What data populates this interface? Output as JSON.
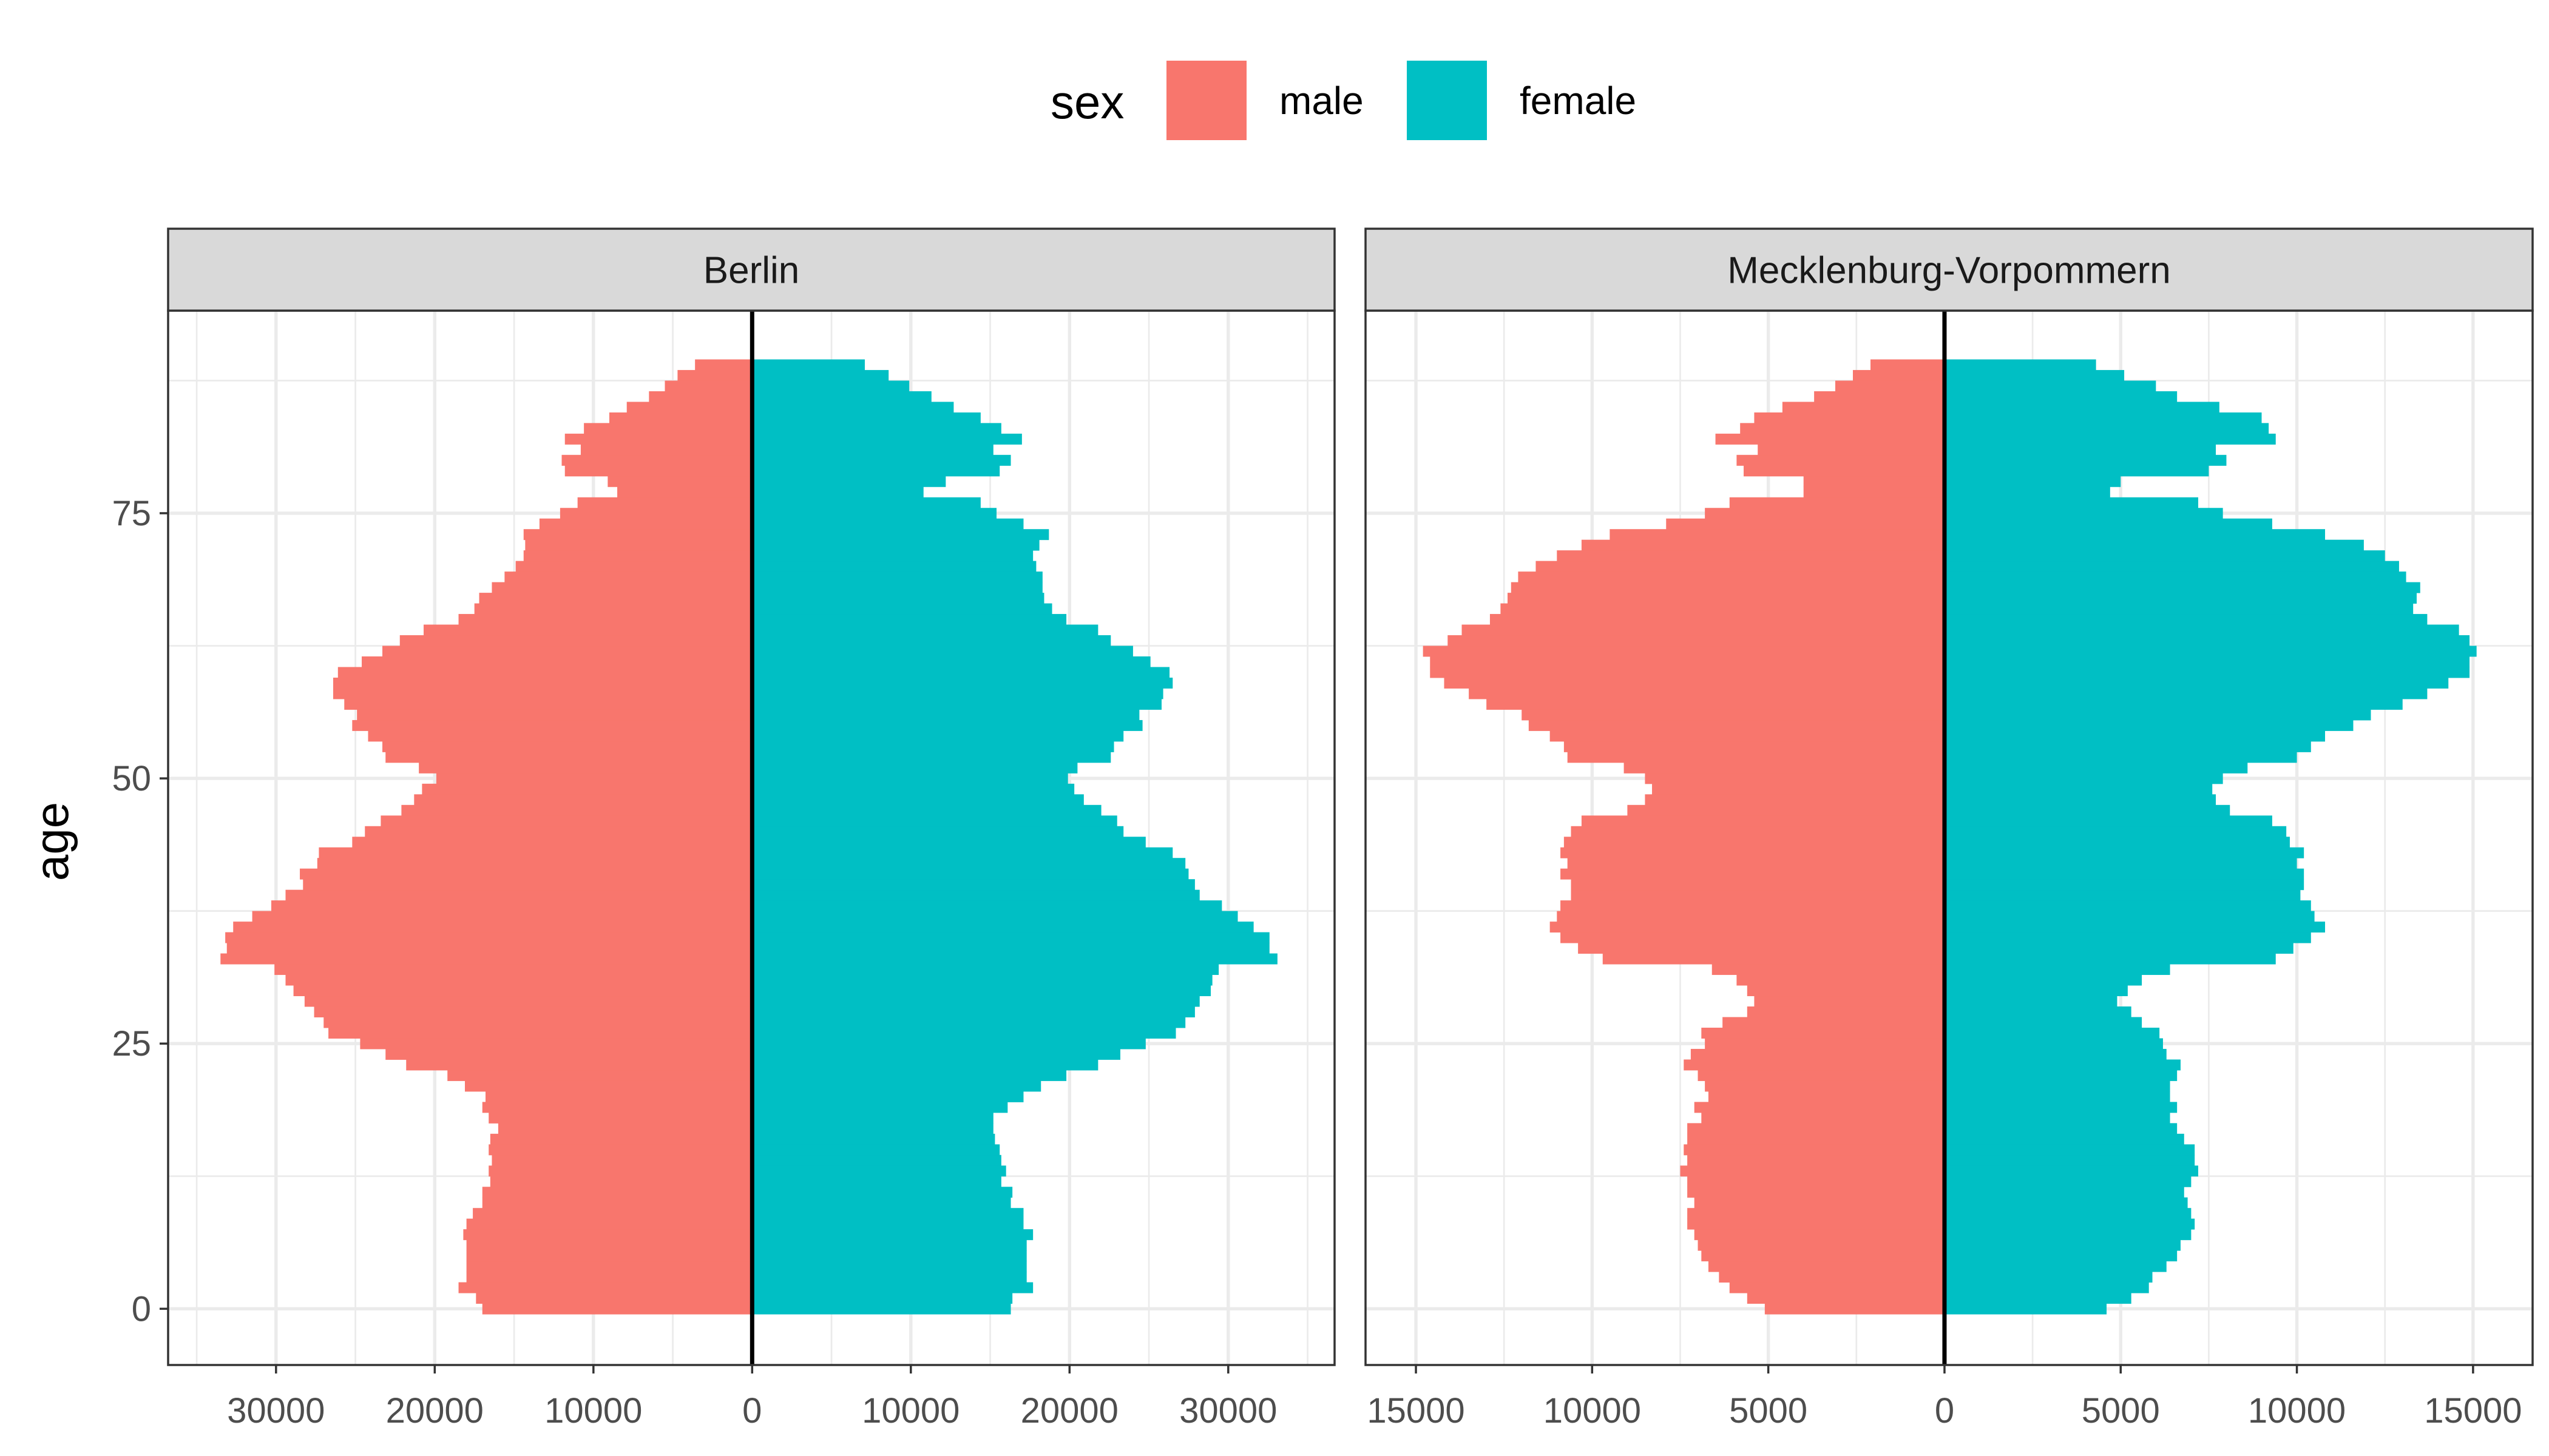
{
  "chart_data": {
    "type": "bar",
    "orientation": "horizontal",
    "subtype": "population-pyramid",
    "xlabel": "",
    "ylabel": "age",
    "legend": {
      "title": "sex",
      "placement": "top",
      "entries": [
        {
          "name": "male",
          "color": "#F8766D"
        },
        {
          "name": "female",
          "color": "#00BFC4"
        }
      ]
    },
    "grid": true,
    "y_ticks": [
      "0",
      "25",
      "50",
      "75"
    ],
    "y_tick_values": [
      0,
      25,
      50,
      75
    ],
    "ylim": [
      -5.3,
      94.1
    ],
    "facets": [
      {
        "name": "Berlin",
        "xlim": [
          -36800,
          36700
        ],
        "x_tick_values": [
          -30000,
          -20000,
          -10000,
          0,
          10000,
          20000,
          30000
        ],
        "x_ticks": [
          "30000",
          "20000",
          "10000",
          "0",
          "10000",
          "20000",
          "30000"
        ],
        "minor_step": 5000,
        "ages_from": 0,
        "male": [
          17000,
          17400,
          18500,
          18000,
          18000,
          18000,
          18000,
          18200,
          18000,
          17600,
          17000,
          17000,
          16500,
          16600,
          16400,
          16600,
          16500,
          16000,
          16600,
          17000,
          16800,
          18100,
          19200,
          21800,
          23100,
          24700,
          26700,
          27000,
          27600,
          28200,
          28900,
          29400,
          30100,
          33500,
          33100,
          33200,
          32700,
          31500,
          30300,
          29400,
          28300,
          28500,
          27400,
          27300,
          25200,
          24400,
          23400,
          22100,
          21300,
          20800,
          19900,
          21000,
          23100,
          23300,
          24200,
          25200,
          24900,
          25700,
          26400,
          26400,
          26100,
          24600,
          23300,
          22200,
          20700,
          18500,
          17500,
          17200,
          16400,
          15600,
          14900,
          14400,
          14300,
          14400,
          13400,
          12100,
          11000,
          8500,
          9100,
          11800,
          12000,
          10800,
          11800,
          10600,
          9000,
          7900,
          6500,
          5500,
          4700,
          3600
        ],
        "female": [
          16300,
          16400,
          17700,
          17300,
          17300,
          17300,
          17300,
          17700,
          17100,
          17100,
          16300,
          16400,
          15700,
          16000,
          15700,
          15600,
          15300,
          15200,
          15200,
          16100,
          17100,
          18200,
          19800,
          21800,
          23200,
          24800,
          26700,
          27300,
          27900,
          28200,
          28900,
          29000,
          29400,
          33100,
          32600,
          32600,
          31600,
          30600,
          29600,
          28200,
          27900,
          27500,
          27300,
          26500,
          24800,
          23400,
          23000,
          22000,
          20900,
          20300,
          19900,
          20500,
          22600,
          22800,
          23400,
          24600,
          24400,
          25800,
          25900,
          26500,
          26300,
          25100,
          24000,
          22600,
          21800,
          19800,
          18900,
          18400,
          18300,
          18300,
          17900,
          17700,
          18100,
          18700,
          17100,
          15400,
          14400,
          10800,
          12200,
          15600,
          16300,
          15200,
          17000,
          15700,
          14400,
          12700,
          11300,
          9900,
          8600,
          7100
        ]
      },
      {
        "name": "Mecklenburg-Vorpommern",
        "xlim": [
          -16430,
          16690
        ],
        "x_tick_values": [
          -15000,
          -10000,
          -5000,
          0,
          5000,
          10000,
          15000
        ],
        "x_ticks": [
          "15000",
          "10000",
          "5000",
          "0",
          "5000",
          "10000",
          "15000"
        ],
        "minor_step": 2500,
        "ages_from": 0,
        "male": [
          5100,
          5600,
          6100,
          6400,
          6700,
          6900,
          7000,
          7100,
          7300,
          7300,
          7100,
          7300,
          7300,
          7500,
          7300,
          7400,
          7300,
          7300,
          6900,
          7100,
          6700,
          6800,
          7000,
          7400,
          7200,
          6800,
          6900,
          6300,
          5600,
          5400,
          5600,
          5900,
          6600,
          9700,
          10400,
          10900,
          11200,
          11000,
          10900,
          10600,
          10600,
          10900,
          10700,
          10900,
          10800,
          10600,
          10300,
          9000,
          8500,
          8300,
          8500,
          9100,
          10700,
          10800,
          11200,
          11800,
          12000,
          13000,
          13500,
          14200,
          14600,
          14600,
          14800,
          14100,
          13700,
          12900,
          12600,
          12400,
          12300,
          12100,
          11600,
          11000,
          10300,
          9500,
          7900,
          6800,
          6100,
          4000,
          4000,
          5700,
          5900,
          5300,
          6500,
          5800,
          5400,
          4600,
          3700,
          3100,
          2600,
          2100
        ],
        "female": [
          4600,
          5300,
          5800,
          5900,
          6300,
          6600,
          6700,
          7000,
          7100,
          7000,
          6900,
          6800,
          7000,
          7200,
          7100,
          7100,
          6800,
          6600,
          6400,
          6600,
          6400,
          6400,
          6600,
          6700,
          6300,
          6200,
          6100,
          5600,
          5300,
          4900,
          5200,
          5600,
          6400,
          9400,
          9900,
          10400,
          10800,
          10500,
          10400,
          10100,
          10200,
          10200,
          10000,
          10200,
          9800,
          9700,
          9300,
          8100,
          7700,
          7600,
          7900,
          8600,
          10000,
          10400,
          10800,
          11600,
          12100,
          13000,
          13700,
          14300,
          14900,
          14900,
          15100,
          14900,
          14600,
          13700,
          13300,
          13400,
          13500,
          13100,
          12900,
          12500,
          11900,
          10800,
          9300,
          7900,
          7200,
          4700,
          5000,
          7500,
          8000,
          7700,
          9400,
          9200,
          9000,
          7800,
          6600,
          6000,
          5100,
          4300
        ]
      }
    ]
  }
}
